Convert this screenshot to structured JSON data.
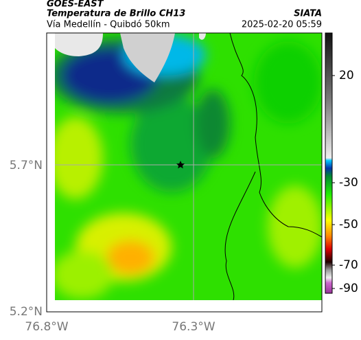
{
  "header": {
    "source": "GOES-EAST",
    "title": "Temperatura de Brillo CH13",
    "subtitle": "Vía Medellín - Quibdó 50km",
    "org": "SIATA",
    "datetime": "2025-02-20 05:59"
  },
  "map": {
    "lat_labels": [
      "5.7°N",
      "5.2°N"
    ],
    "lon_labels": [
      "76.8°W",
      "76.3°W"
    ]
  },
  "colorbar": {
    "ticks": [
      "20",
      "-30",
      "-50",
      "-70",
      "-90"
    ]
  }
}
